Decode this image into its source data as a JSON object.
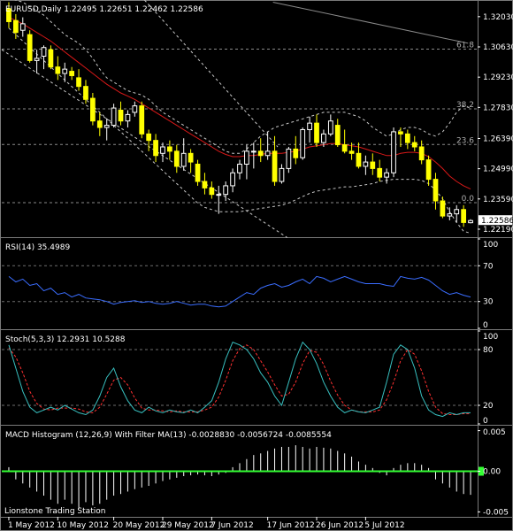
{
  "chart_data": [
    {
      "id": "price",
      "type": "candlestick",
      "title": "EURUSD,Daily  1.22495 1.22651 1.22462 1.22586",
      "last_price_label": "1.22586",
      "ylim": [
        1.2182,
        1.3272
      ],
      "yticks": [
        {
          "value": 1.3203,
          "label": "1.32030"
        },
        {
          "value": 1.3063,
          "label": "1.30630"
        },
        {
          "value": 1.2923,
          "label": "1.29230"
        },
        {
          "value": 1.2783,
          "label": "1.27830"
        },
        {
          "value": 1.2639,
          "label": "1.26390"
        },
        {
          "value": 1.2499,
          "label": "1.24990"
        },
        {
          "value": 1.2359,
          "label": "1.23590"
        },
        {
          "value": 1.2219,
          "label": "1.22190"
        }
      ],
      "fib_levels": [
        {
          "label": "61.8",
          "value": 1.3053
        },
        {
          "label": "38.2",
          "value": 1.2776
        },
        {
          "label": "23.6",
          "value": 1.2611
        },
        {
          "label": "0.0",
          "value": 1.2342
        }
      ],
      "candles": [
        {
          "o": 1.324,
          "h": 1.327,
          "l": 1.315,
          "c": 1.318
        },
        {
          "o": 1.3185,
          "h": 1.3215,
          "l": 1.31,
          "c": 1.313
        },
        {
          "o": 1.314,
          "h": 1.32,
          "l": 1.311,
          "c": 1.317
        },
        {
          "o": 1.312,
          "h": 1.314,
          "l": 1.299,
          "c": 1.3
        },
        {
          "o": 1.3,
          "h": 1.305,
          "l": 1.294,
          "c": 1.301
        },
        {
          "o": 1.302,
          "h": 1.307,
          "l": 1.296,
          "c": 1.306
        },
        {
          "o": 1.305,
          "h": 1.307,
          "l": 1.296,
          "c": 1.297
        },
        {
          "o": 1.297,
          "h": 1.302,
          "l": 1.291,
          "c": 1.294
        },
        {
          "o": 1.294,
          "h": 1.299,
          "l": 1.29,
          "c": 1.296
        },
        {
          "o": 1.295,
          "h": 1.297,
          "l": 1.291,
          "c": 1.293
        },
        {
          "o": 1.292,
          "h": 1.296,
          "l": 1.286,
          "c": 1.288
        },
        {
          "o": 1.288,
          "h": 1.291,
          "l": 1.28,
          "c": 1.282
        },
        {
          "o": 1.2825,
          "h": 1.285,
          "l": 1.27,
          "c": 1.272
        },
        {
          "o": 1.272,
          "h": 1.276,
          "l": 1.265,
          "c": 1.269
        },
        {
          "o": 1.269,
          "h": 1.273,
          "l": 1.263,
          "c": 1.27
        },
        {
          "o": 1.27,
          "h": 1.28,
          "l": 1.269,
          "c": 1.278
        },
        {
          "o": 1.277,
          "h": 1.281,
          "l": 1.27,
          "c": 1.272
        },
        {
          "o": 1.272,
          "h": 1.277,
          "l": 1.269,
          "c": 1.275
        },
        {
          "o": 1.276,
          "h": 1.281,
          "l": 1.274,
          "c": 1.279
        },
        {
          "o": 1.279,
          "h": 1.281,
          "l": 1.264,
          "c": 1.266
        },
        {
          "o": 1.266,
          "h": 1.268,
          "l": 1.258,
          "c": 1.263
        },
        {
          "o": 1.263,
          "h": 1.266,
          "l": 1.253,
          "c": 1.256
        },
        {
          "o": 1.257,
          "h": 1.262,
          "l": 1.253,
          "c": 1.26
        },
        {
          "o": 1.26,
          "h": 1.263,
          "l": 1.254,
          "c": 1.258
        },
        {
          "o": 1.258,
          "h": 1.261,
          "l": 1.248,
          "c": 1.251
        },
        {
          "o": 1.251,
          "h": 1.264,
          "l": 1.249,
          "c": 1.257
        },
        {
          "o": 1.257,
          "h": 1.259,
          "l": 1.248,
          "c": 1.253
        },
        {
          "o": 1.252,
          "h": 1.254,
          "l": 1.242,
          "c": 1.244
        },
        {
          "o": 1.244,
          "h": 1.248,
          "l": 1.238,
          "c": 1.241
        },
        {
          "o": 1.241,
          "h": 1.244,
          "l": 1.236,
          "c": 1.238
        },
        {
          "o": 1.238,
          "h": 1.242,
          "l": 1.229,
          "c": 1.238
        },
        {
          "o": 1.238,
          "h": 1.244,
          "l": 1.235,
          "c": 1.242
        },
        {
          "o": 1.242,
          "h": 1.25,
          "l": 1.239,
          "c": 1.248
        },
        {
          "o": 1.248,
          "h": 1.254,
          "l": 1.245,
          "c": 1.252
        },
        {
          "o": 1.252,
          "h": 1.261,
          "l": 1.245,
          "c": 1.258
        },
        {
          "o": 1.258,
          "h": 1.262,
          "l": 1.25,
          "c": 1.258
        },
        {
          "o": 1.258,
          "h": 1.264,
          "l": 1.253,
          "c": 1.256
        },
        {
          "o": 1.256,
          "h": 1.267,
          "l": 1.254,
          "c": 1.258
        },
        {
          "o": 1.258,
          "h": 1.265,
          "l": 1.242,
          "c": 1.244
        },
        {
          "o": 1.244,
          "h": 1.252,
          "l": 1.243,
          "c": 1.25
        },
        {
          "o": 1.25,
          "h": 1.26,
          "l": 1.248,
          "c": 1.259
        },
        {
          "o": 1.259,
          "h": 1.265,
          "l": 1.252,
          "c": 1.255
        },
        {
          "o": 1.255,
          "h": 1.269,
          "l": 1.254,
          "c": 1.268
        },
        {
          "o": 1.268,
          "h": 1.274,
          "l": 1.262,
          "c": 1.271
        },
        {
          "o": 1.271,
          "h": 1.275,
          "l": 1.26,
          "c": 1.262
        },
        {
          "o": 1.262,
          "h": 1.268,
          "l": 1.26,
          "c": 1.266
        },
        {
          "o": 1.266,
          "h": 1.275,
          "l": 1.265,
          "c": 1.272
        },
        {
          "o": 1.27,
          "h": 1.273,
          "l": 1.26,
          "c": 1.261
        },
        {
          "o": 1.261,
          "h": 1.268,
          "l": 1.257,
          "c": 1.258
        },
        {
          "o": 1.258,
          "h": 1.262,
          "l": 1.254,
          "c": 1.257
        },
        {
          "o": 1.257,
          "h": 1.262,
          "l": 1.25,
          "c": 1.251
        },
        {
          "o": 1.251,
          "h": 1.256,
          "l": 1.247,
          "c": 1.253
        },
        {
          "o": 1.253,
          "h": 1.257,
          "l": 1.247,
          "c": 1.25
        },
        {
          "o": 1.25,
          "h": 1.254,
          "l": 1.244,
          "c": 1.246
        },
        {
          "o": 1.246,
          "h": 1.25,
          "l": 1.243,
          "c": 1.248
        },
        {
          "o": 1.248,
          "h": 1.269,
          "l": 1.246,
          "c": 1.267
        },
        {
          "o": 1.267,
          "h": 1.269,
          "l": 1.26,
          "c": 1.266
        },
        {
          "o": 1.266,
          "h": 1.268,
          "l": 1.259,
          "c": 1.262
        },
        {
          "o": 1.262,
          "h": 1.265,
          "l": 1.258,
          "c": 1.26
        },
        {
          "o": 1.26,
          "h": 1.263,
          "l": 1.252,
          "c": 1.254
        },
        {
          "o": 1.254,
          "h": 1.256,
          "l": 1.242,
          "c": 1.245
        },
        {
          "o": 1.245,
          "h": 1.248,
          "l": 1.231,
          "c": 1.235
        },
        {
          "o": 1.235,
          "h": 1.237,
          "l": 1.227,
          "c": 1.228
        },
        {
          "o": 1.228,
          "h": 1.232,
          "l": 1.226,
          "c": 1.229
        },
        {
          "o": 1.229,
          "h": 1.233,
          "l": 1.225,
          "c": 1.231
        },
        {
          "o": 1.231,
          "h": 1.233,
          "l": 1.223,
          "c": 1.225
        },
        {
          "o": 1.2249,
          "h": 1.2265,
          "l": 1.2246,
          "c": 1.2259
        }
      ],
      "ma_red": [
        1.32,
        1.3185,
        1.317,
        1.315,
        1.313,
        1.311,
        1.309,
        1.3065,
        1.304,
        1.3015,
        1.299,
        1.2965,
        1.294,
        1.2915,
        1.289,
        1.287,
        1.285,
        1.2835,
        1.282,
        1.28,
        1.278,
        1.276,
        1.274,
        1.272,
        1.27,
        1.268,
        1.266,
        1.264,
        1.262,
        1.26,
        1.258,
        1.2565,
        1.2555,
        1.2555,
        1.256,
        1.256,
        1.2565,
        1.257,
        1.257,
        1.257,
        1.2575,
        1.258,
        1.259,
        1.26,
        1.2605,
        1.261,
        1.2615,
        1.2615,
        1.261,
        1.2605,
        1.26,
        1.259,
        1.258,
        1.257,
        1.256,
        1.256,
        1.257,
        1.2575,
        1.2575,
        1.257,
        1.2555,
        1.253,
        1.25,
        1.2465,
        1.244,
        1.242,
        1.2405
      ],
      "ma_gray": {
        "x_start": 0.57,
        "x_end": 0.98,
        "values": [
          1.327,
          1.308
        ]
      },
      "env_upper": [
        1.329,
        1.328,
        1.327,
        1.325,
        1.323,
        1.321,
        1.318,
        1.315,
        1.312,
        1.31,
        1.308,
        1.305,
        1.301,
        1.296,
        1.292,
        1.29,
        1.288,
        1.286,
        1.285,
        1.284,
        1.282,
        1.279,
        1.276,
        1.274,
        1.272,
        1.27,
        1.268,
        1.266,
        1.264,
        1.262,
        1.26,
        1.258,
        1.257,
        1.257,
        1.259,
        1.262,
        1.265,
        1.267,
        1.269,
        1.27,
        1.271,
        1.272,
        1.273,
        1.274,
        1.275,
        1.276,
        1.276,
        1.276,
        1.276,
        1.275,
        1.274,
        1.272,
        1.269,
        1.267,
        1.265,
        1.266,
        1.268,
        1.269,
        1.269,
        1.268,
        1.266,
        1.265,
        1.267,
        1.271,
        1.276,
        1.279,
        1.278
      ],
      "env_lower": [
        1.315,
        1.312,
        1.309,
        1.306,
        1.303,
        1.3,
        1.297,
        1.294,
        1.291,
        1.288,
        1.285,
        1.282,
        1.279,
        1.276,
        1.273,
        1.27,
        1.267,
        1.264,
        1.261,
        1.258,
        1.255,
        1.252,
        1.249,
        1.246,
        1.243,
        1.24,
        1.237,
        1.234,
        1.232,
        1.231,
        1.23,
        1.23,
        1.23,
        1.23,
        1.2305,
        1.231,
        1.2315,
        1.232,
        1.2325,
        1.233,
        1.234,
        1.2355,
        1.237,
        1.2385,
        1.2395,
        1.24,
        1.2405,
        1.241,
        1.2415,
        1.2415,
        1.242,
        1.2425,
        1.243,
        1.244,
        1.2445,
        1.245,
        1.245,
        1.245,
        1.245,
        1.2445,
        1.243,
        1.24,
        1.236,
        1.23,
        1.225,
        1.221,
        1.22
      ],
      "diag_dash": [
        {
          "x0": 0.3,
          "y0": 1.328,
          "x1": 0.58,
          "y1": 1.26
        },
        {
          "x0": 0.0,
          "y0": 1.305,
          "x1": 0.6,
          "y1": 1.218
        }
      ]
    },
    {
      "id": "rsi",
      "type": "line",
      "title": "RSI(14) 35.4989",
      "ylim": [
        0,
        100
      ],
      "levels": [
        70,
        30
      ],
      "yticks": [
        {
          "value": 100,
          "label": "100"
        },
        {
          "value": 70,
          "label": "70"
        },
        {
          "value": 30,
          "label": "30"
        },
        {
          "value": 0,
          "label": "0"
        }
      ],
      "values": [
        58,
        52,
        55,
        48,
        50,
        42,
        45,
        38,
        40,
        35,
        38,
        34,
        33,
        32,
        30,
        27,
        29,
        30,
        31,
        29,
        30,
        28,
        27,
        28,
        30,
        28,
        26,
        27,
        27,
        25,
        24,
        25,
        30,
        35,
        40,
        38,
        45,
        48,
        50,
        46,
        48,
        52,
        55,
        50,
        58,
        56,
        52,
        55,
        58,
        55,
        52,
        50,
        50,
        50,
        48,
        47,
        58,
        56,
        55,
        57,
        54,
        48,
        42,
        38,
        40,
        37,
        35
      ],
      "color": "#3a6dff"
    },
    {
      "id": "stoch",
      "type": "line",
      "title": "Stoch(5,3,3) 12.2931 10.5288",
      "ylim": [
        0,
        100
      ],
      "levels": [
        80,
        20
      ],
      "yticks": [
        {
          "value": 100,
          "label": "100"
        },
        {
          "value": 80,
          "label": "80"
        },
        {
          "value": 20,
          "label": "20"
        },
        {
          "value": 0,
          "label": "0"
        }
      ],
      "main": [
        85,
        60,
        35,
        18,
        12,
        15,
        18,
        15,
        20,
        16,
        12,
        10,
        15,
        30,
        50,
        60,
        40,
        25,
        15,
        12,
        18,
        14,
        12,
        15,
        13,
        12,
        15,
        12,
        18,
        25,
        45,
        70,
        88,
        85,
        80,
        70,
        55,
        45,
        30,
        20,
        45,
        70,
        88,
        80,
        65,
        45,
        30,
        18,
        12,
        15,
        13,
        12,
        15,
        18,
        45,
        75,
        85,
        80,
        60,
        30,
        15,
        10,
        8,
        12,
        10,
        12,
        12
      ],
      "signal": [
        82,
        72,
        55,
        35,
        22,
        16,
        15,
        17,
        17,
        17,
        16,
        13,
        12,
        18,
        32,
        47,
        50,
        42,
        28,
        17,
        15,
        15,
        14,
        13,
        14,
        13,
        13,
        13,
        15,
        18,
        29,
        47,
        68,
        81,
        85,
        80,
        68,
        56,
        42,
        30,
        32,
        45,
        65,
        79,
        77,
        64,
        46,
        31,
        20,
        15,
        13,
        13,
        13,
        15,
        26,
        45,
        68,
        80,
        75,
        57,
        35,
        18,
        11,
        10,
        10,
        11,
        11
      ],
      "main_color": "#38c0c0",
      "signal_color": "#ff3030"
    },
    {
      "id": "macd",
      "type": "bar",
      "title": "MACD Histogram (12,26,9) With Filter MA(13) -0.0028830 -0.0056724 -0.0085554",
      "ylim": [
        -0.0055,
        0.0055
      ],
      "yticks": [
        {
          "value": 0.005,
          "label": "0.005"
        },
        {
          "value": 0.0,
          "label": "0.00"
        },
        {
          "value": -0.005,
          "label": "-0.005"
        }
      ],
      "values": [
        0.0005,
        -0.001,
        -0.0015,
        -0.002,
        -0.0025,
        -0.003,
        -0.0035,
        -0.004,
        -0.0035,
        -0.004,
        -0.0045,
        -0.0038,
        -0.0042,
        -0.004,
        -0.0035,
        -0.003,
        -0.0028,
        -0.0025,
        -0.0022,
        -0.002,
        -0.0018,
        -0.0015,
        -0.0012,
        -0.001,
        -0.0008,
        -0.0006,
        -0.0005,
        -0.0004,
        -0.0005,
        -0.0006,
        -0.0004,
        -0.0002,
        0.0005,
        0.001,
        0.0015,
        0.002,
        0.0022,
        0.0025,
        0.0028,
        0.003,
        0.003,
        0.0032,
        0.003,
        0.0028,
        0.003,
        0.0029,
        0.0028,
        0.0025,
        0.0022,
        0.0018,
        0.0012,
        0.0008,
        0.0004,
        -0.0002,
        -0.0005,
        0.0004,
        0.0008,
        0.001,
        0.001,
        0.0008,
        0.0004,
        -0.001,
        -0.0015,
        -0.002,
        -0.0025,
        -0.0028,
        -0.0029
      ],
      "zero_line_color": "#33ff33",
      "watermark": "Lionstone Trading Station"
    }
  ],
  "x_axis": {
    "labels": [
      {
        "index": 0,
        "label": "1 May 2012"
      },
      {
        "index": 7,
        "label": "10 May 2012"
      },
      {
        "index": 15,
        "label": "20 May 2012"
      },
      {
        "index": 22,
        "label": "29 May 2012"
      },
      {
        "index": 29,
        "label": "7 Jun 2012"
      },
      {
        "index": 37,
        "label": "17 Jun 2012"
      },
      {
        "index": 44,
        "label": "26 Jun 2012"
      },
      {
        "index": 51,
        "label": "5 Jul 2012"
      }
    ]
  },
  "colors": {
    "bull": "#000000",
    "bull_outline": "#ffffff",
    "bear": "#ffff00",
    "grid": "#6e6e6e",
    "ma_red": "#d81818",
    "ma_gray": "#8a8a8a",
    "envelope": "#c8c8c8"
  }
}
